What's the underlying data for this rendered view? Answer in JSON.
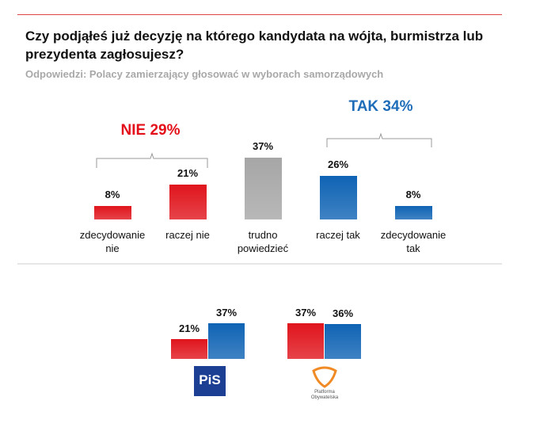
{
  "chart_data": [
    {
      "type": "bar",
      "title": "Czy podjąłeś już decyzję na którego kandydata na wójta, burmistrza lub prezydenta zagłosujesz?",
      "subtitle": "Odpowiedzi: Polacy zamierzający głosować w wyborach samorządowych",
      "categories": [
        "zdecydowanie nie",
        "raczej nie",
        "trudno powiedzieć",
        "raczej tak",
        "zdecydowanie tak"
      ],
      "values": [
        8,
        21,
        37,
        26,
        8
      ],
      "value_labels": [
        "8%",
        "21%",
        "37%",
        "26%",
        "8%"
      ],
      "colors": [
        "#e0141c",
        "#e0141c",
        "#a6a6a6",
        "#0f63b4",
        "#0f63b4"
      ],
      "groups": [
        {
          "label": "NIE 29%",
          "color": "#e3101a"
        },
        {
          "label": "TAK 34%",
          "color": "#1f6db8"
        }
      ]
    },
    {
      "type": "grouped_bar",
      "categories": [
        "PiS",
        "Platforma Obywatelska"
      ],
      "series": [
        {
          "color": "#e0141c",
          "values": [
            21,
            37
          ],
          "value_labels": [
            "21%",
            "37%"
          ]
        },
        {
          "color": "#0f63b4",
          "values": [
            37,
            36
          ],
          "value_labels": [
            "37%",
            "36%"
          ]
        }
      ]
    }
  ]
}
